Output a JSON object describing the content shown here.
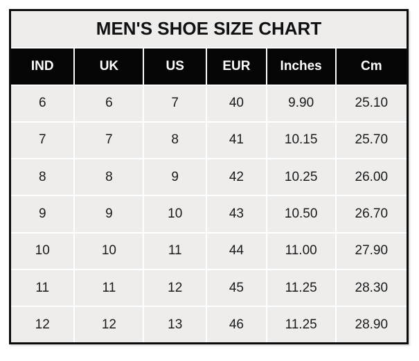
{
  "title": "MEN'S SHOE SIZE CHART",
  "colors": {
    "header_bg": "#050505",
    "header_text": "#ffffff",
    "cell_bg": "#eeedec",
    "gridline": "#ffffff",
    "outer_border": "#0b0b0b",
    "text": "#1a1a1a",
    "page_bg": "#ffffff"
  },
  "chart_data": {
    "type": "table",
    "title": "MEN'S SHOE SIZE CHART",
    "columns": [
      "IND",
      "UK",
      "US",
      "EUR",
      "Inches",
      "Cm"
    ],
    "rows": [
      [
        "6",
        "6",
        "7",
        "40",
        "9.90",
        "25.10"
      ],
      [
        "7",
        "7",
        "8",
        "41",
        "10.15",
        "25.70"
      ],
      [
        "8",
        "8",
        "9",
        "42",
        "10.25",
        "26.00"
      ],
      [
        "9",
        "9",
        "10",
        "43",
        "10.50",
        "26.70"
      ],
      [
        "10",
        "10",
        "11",
        "44",
        "11.00",
        "27.90"
      ],
      [
        "11",
        "11",
        "12",
        "45",
        "11.25",
        "28.30"
      ],
      [
        "12",
        "12",
        "13",
        "46",
        "11.25",
        "28.90"
      ]
    ],
    "layout": {
      "grid": "white gridlines on light-gray cells",
      "legend": "none"
    }
  }
}
